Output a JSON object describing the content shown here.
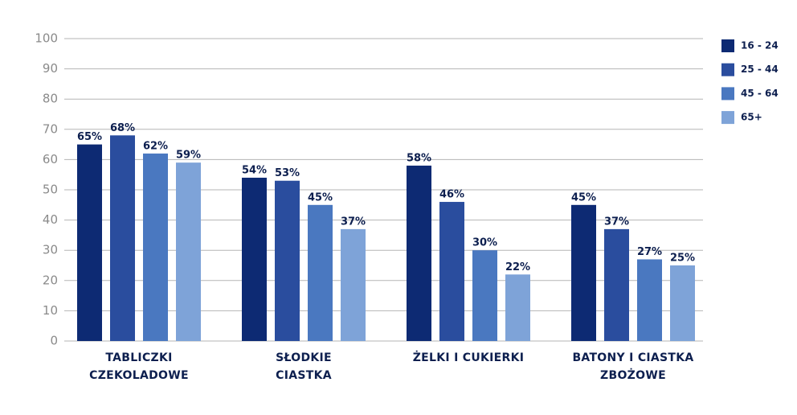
{
  "chart_data": {
    "type": "bar",
    "categories": [
      "TABLICZKI\nCZEKOLADOWE",
      "SŁODKIE\nCIASTKA",
      "ŻELKI I CUKIERKI",
      "BATONY I CIASTKA\nZBOŻOWE"
    ],
    "series": [
      {
        "name": "16 - 24",
        "color": "#0d2a73",
        "values": [
          65,
          54,
          58,
          45
        ],
        "value_labels": [
          "65%",
          "54%",
          "58%",
          "45%"
        ]
      },
      {
        "name": "25 - 44",
        "color": "#2a4d9e",
        "values": [
          68,
          53,
          46,
          37
        ],
        "value_labels": [
          "68%",
          "53%",
          "46%",
          "37%"
        ]
      },
      {
        "name": "45 - 64",
        "color": "#4a78c0",
        "values": [
          62,
          45,
          30,
          27
        ],
        "value_labels": [
          "62%",
          "45%",
          "30%",
          "27%"
        ]
      },
      {
        "name": "65+",
        "color": "#7ea3d8",
        "values": [
          59,
          37,
          22,
          25
        ],
        "value_labels": [
          "59%",
          "37%",
          "22%",
          "25%"
        ]
      }
    ],
    "ylim": [
      0,
      100
    ],
    "yticks": [
      0,
      10,
      20,
      30,
      40,
      50,
      60,
      70,
      80,
      90,
      100
    ],
    "grid": true,
    "legend": "right"
  }
}
